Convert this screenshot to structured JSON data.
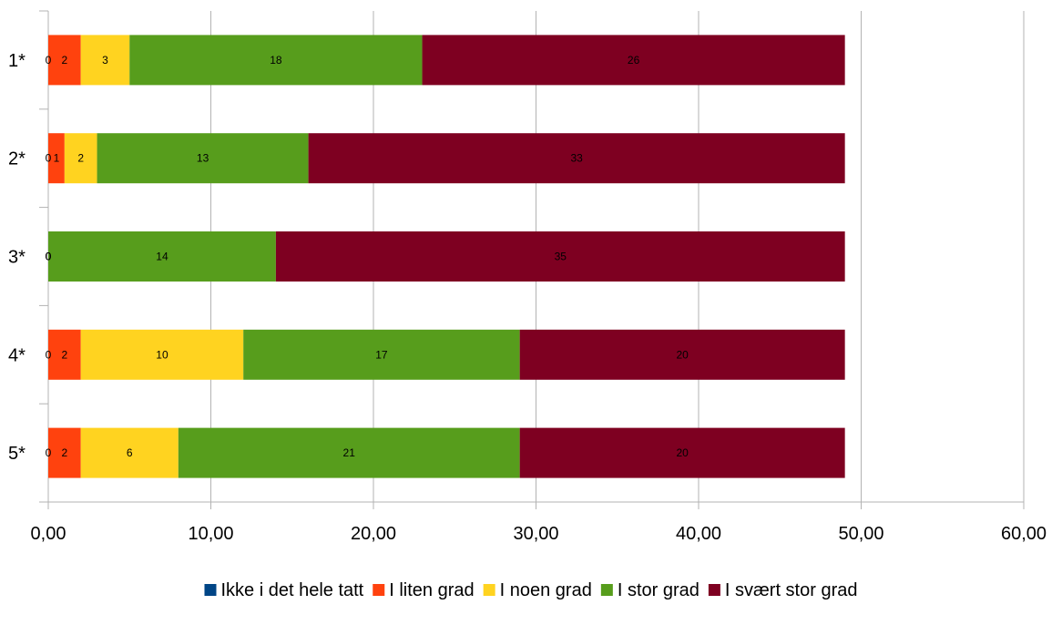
{
  "chart_data": {
    "type": "bar",
    "orientation": "horizontal",
    "stacked": true,
    "categories": [
      "1*",
      "2*",
      "3*",
      "4*",
      "5*"
    ],
    "series": [
      {
        "name": "Ikke i det hele tatt",
        "color": "#004586",
        "values": [
          0,
          0,
          0,
          0,
          0
        ]
      },
      {
        "name": "I liten grad",
        "color": "#ff420e",
        "values": [
          2,
          1,
          0,
          2,
          2
        ]
      },
      {
        "name": "I noen grad",
        "color": "#ffd320",
        "values": [
          3,
          2,
          0,
          10,
          6
        ]
      },
      {
        "name": "I stor grad",
        "color": "#579d1c",
        "values": [
          18,
          13,
          14,
          17,
          21
        ]
      },
      {
        "name": "I svært stor grad",
        "color": "#7e0021",
        "values": [
          26,
          33,
          35,
          20,
          20
        ]
      }
    ],
    "xlim": [
      0,
      60
    ],
    "x_ticks": [
      "0,00",
      "10,00",
      "20,00",
      "30,00",
      "40,00",
      "50,00",
      "60,00"
    ],
    "xlabel": "",
    "ylabel": "",
    "title": "",
    "grid": "vertical",
    "legend": "bottom"
  }
}
